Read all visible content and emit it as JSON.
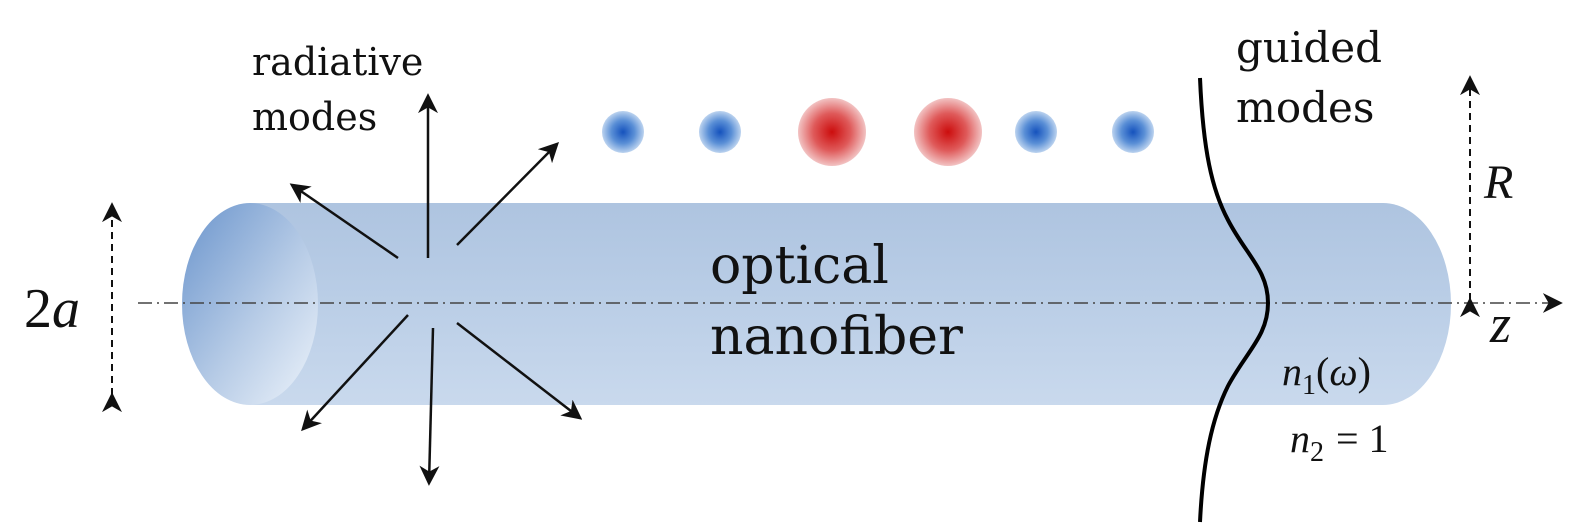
{
  "labels": {
    "radiative_line1": "radiative",
    "radiative_line2": "modes",
    "guided_line1": "guided",
    "guided_line2": "modes",
    "fiber_line1": "optical",
    "fiber_line2": "nanofiber",
    "diameter_num": "2",
    "diameter_var": "a",
    "radius_var": "R",
    "axis_var": "z",
    "n1_var": "n",
    "n1_sub": "1",
    "n1_paren_open": "(",
    "n1_omega": "ω",
    "n1_paren_close": ")",
    "n2_var": "n",
    "n2_sub": "2",
    "n2_eq": "= 1"
  },
  "colors": {
    "fiber_body": "#b9cbe4",
    "fiber_highlight": "#c8d8ec",
    "fiber_endcap_dark": "#6f98cf",
    "fiber_endcap_light": "#eaf1f9",
    "atom_blue": "#1f62c4",
    "atom_red": "#cc1111",
    "axis_line": "#222222",
    "arrow": "#111111"
  },
  "atoms": [
    {
      "kind": "blue"
    },
    {
      "kind": "blue"
    },
    {
      "kind": "red"
    },
    {
      "kind": "red"
    },
    {
      "kind": "blue"
    },
    {
      "kind": "blue"
    }
  ],
  "icons": {
    "emission_arrows": "arrows",
    "axis": "dash-dot-arrow",
    "mode_profile": "curve"
  }
}
